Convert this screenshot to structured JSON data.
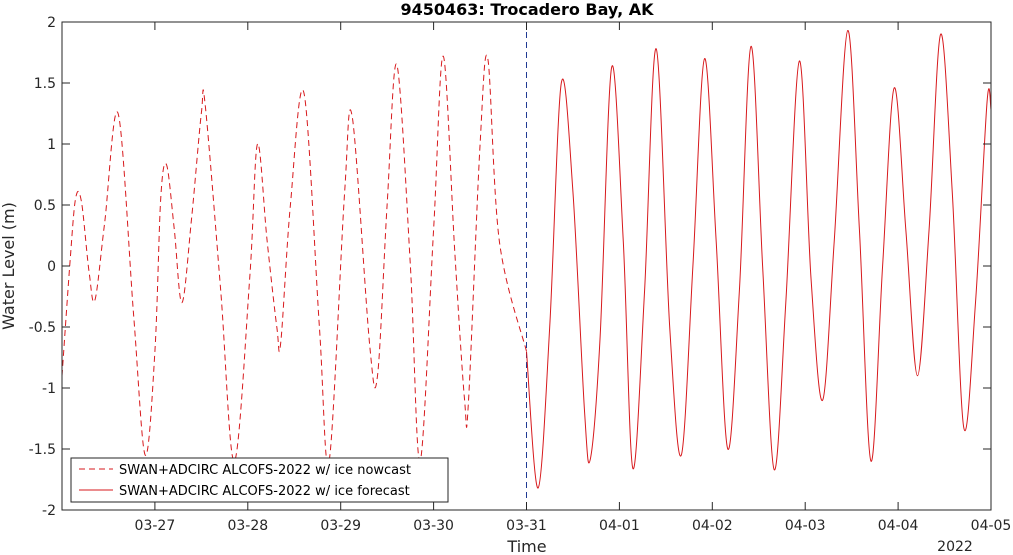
{
  "chart_data": {
    "type": "line",
    "title": "9450463: Trocadero Bay, AK",
    "xlabel": "Time",
    "ylabel": "Water Level (m)",
    "year_label": "2022",
    "x_tick_labels": [
      "03-27",
      "03-28",
      "03-29",
      "03-30",
      "03-31",
      "04-01",
      "04-02",
      "04-03",
      "04-04",
      "04-05"
    ],
    "y_tick_labels": [
      "2",
      "1.5",
      "1",
      "0.5",
      "0",
      "-0.5",
      "-1",
      "-1.5",
      "-2"
    ],
    "ylim": [
      -2,
      2
    ],
    "xlim": [
      "2022-03-26 00:00",
      "2022-04-05 00:00"
    ],
    "grid": false,
    "legend_position": "bottom-left",
    "nowcast_end": "2022-03-31 00:00",
    "series": [
      {
        "name": "SWAN+ADCIRC ALCOFS-2022 w/ ice nowcast",
        "style": "dashed",
        "color": "#d7191c",
        "points": [
          [
            "2022-03-26 00:00",
            -0.9
          ],
          [
            "2022-03-26 02:00",
            0.0
          ],
          [
            "2022-03-26 03:30",
            0.55
          ],
          [
            "2022-03-26 05:00",
            0.53
          ],
          [
            "2022-03-26 07:00",
            -0.05
          ],
          [
            "2022-03-26 08:30",
            -0.28
          ],
          [
            "2022-03-26 11:00",
            0.35
          ],
          [
            "2022-03-26 14:30",
            1.25
          ],
          [
            "2022-03-26 18:30",
            -0.4
          ],
          [
            "2022-03-26 21:30",
            -1.55
          ],
          [
            "2022-03-27 00:00",
            -0.7
          ],
          [
            "2022-03-27 01:30",
            0.55
          ],
          [
            "2022-03-27 03:00",
            0.83
          ],
          [
            "2022-03-27 05:00",
            0.3
          ],
          [
            "2022-03-27 07:00",
            -0.3
          ],
          [
            "2022-03-27 09:30",
            0.4
          ],
          [
            "2022-03-27 12:00",
            1.25
          ],
          [
            "2022-03-27 13:00",
            1.32
          ],
          [
            "2022-03-27 17:00",
            -0.2
          ],
          [
            "2022-03-27 20:30",
            -1.6
          ],
          [
            "2022-03-28 00:30",
            -0.1
          ],
          [
            "2022-03-28 02:30",
            1.0
          ],
          [
            "2022-03-28 05:00",
            0.2
          ],
          [
            "2022-03-28 07:30",
            -0.5
          ],
          [
            "2022-03-28 08:30",
            -0.63
          ],
          [
            "2022-03-28 11:00",
            0.5
          ],
          [
            "2022-03-28 14:30",
            1.42
          ],
          [
            "2022-03-28 18:30",
            -0.5
          ],
          [
            "2022-03-28 21:00",
            -1.6
          ],
          [
            "2022-03-29 01:00",
            0.6
          ],
          [
            "2022-03-29 03:00",
            1.22
          ],
          [
            "2022-03-29 07:30",
            -0.65
          ],
          [
            "2022-03-29 09:30",
            -0.9
          ],
          [
            "2022-03-29 12:00",
            0.5
          ],
          [
            "2022-03-29 14:30",
            1.65
          ],
          [
            "2022-03-29 18:00",
            0.0
          ],
          [
            "2022-03-29 20:30",
            -1.6
          ],
          [
            "2022-03-30 00:00",
            0.3
          ],
          [
            "2022-03-30 02:30",
            1.72
          ],
          [
            "2022-03-30 05:30",
            0.1
          ],
          [
            "2022-03-30 08:00",
            -1.1
          ],
          [
            "2022-03-30 09:00",
            -1.12
          ],
          [
            "2022-03-30 12:00",
            1.0
          ],
          [
            "2022-03-30 14:00",
            1.7
          ],
          [
            "2022-03-30 17:00",
            0.2
          ],
          [
            "2022-03-31 00:00",
            -0.7
          ]
        ]
      },
      {
        "name": "SWAN+ADCIRC ALCOFS-2022 w/ ice forecast",
        "style": "solid",
        "color": "#d7191c",
        "points": [
          [
            "2022-03-31 00:00",
            -0.7
          ],
          [
            "2022-03-31 03:00",
            -1.82
          ],
          [
            "2022-03-31 06:00",
            -0.5
          ],
          [
            "2022-03-31 09:00",
            1.5
          ],
          [
            "2022-03-31 12:00",
            0.6
          ],
          [
            "2022-03-31 15:00",
            -1.2
          ],
          [
            "2022-03-31 16:30",
            -1.58
          ],
          [
            "2022-03-31 19:00",
            -0.6
          ],
          [
            "2022-03-31 22:00",
            1.63
          ],
          [
            "2022-04-01 01:00",
            0.2
          ],
          [
            "2022-04-01 03:30",
            -1.66
          ],
          [
            "2022-04-01 06:30",
            -0.2
          ],
          [
            "2022-04-01 09:30",
            1.78
          ],
          [
            "2022-04-01 13:00",
            -0.5
          ],
          [
            "2022-04-01 16:00",
            -1.55
          ],
          [
            "2022-04-01 19:00",
            0.0
          ],
          [
            "2022-04-01 22:00",
            1.7
          ],
          [
            "2022-04-02 01:00",
            0.2
          ],
          [
            "2022-04-02 04:00",
            -1.5
          ],
          [
            "2022-04-02 07:00",
            -0.2
          ],
          [
            "2022-04-02 10:00",
            1.8
          ],
          [
            "2022-04-02 13:00",
            0.0
          ],
          [
            "2022-04-02 16:00",
            -1.67
          ],
          [
            "2022-04-02 19:00",
            -0.3
          ],
          [
            "2022-04-02 22:30",
            1.68
          ],
          [
            "2022-04-03 01:30",
            -0.1
          ],
          [
            "2022-04-03 04:30",
            -1.1
          ],
          [
            "2022-04-03 07:30",
            0.2
          ],
          [
            "2022-04-03 11:00",
            1.93
          ],
          [
            "2022-04-03 14:00",
            0.3
          ],
          [
            "2022-04-03 17:00",
            -1.6
          ],
          [
            "2022-04-03 20:00",
            0.0
          ],
          [
            "2022-04-03 23:00",
            1.46
          ],
          [
            "2022-04-04 02:00",
            0.3
          ],
          [
            "2022-04-04 05:00",
            -0.9
          ],
          [
            "2022-04-04 08:00",
            0.3
          ],
          [
            "2022-04-04 11:00",
            1.9
          ],
          [
            "2022-04-04 14:00",
            0.6
          ],
          [
            "2022-04-04 17:00",
            -1.33
          ],
          [
            "2022-04-04 20:00",
            -0.3
          ],
          [
            "2022-04-04 23:00",
            1.35
          ],
          [
            "2022-04-05 00:00",
            1.28
          ]
        ]
      }
    ]
  }
}
